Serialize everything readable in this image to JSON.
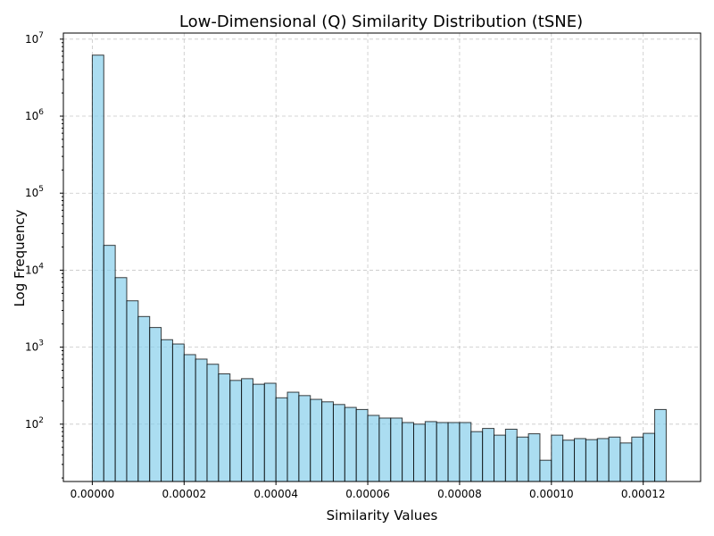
{
  "chart_data": {
    "type": "bar",
    "title": "Low-Dimensional (Q) Similarity Distribution (tSNE)",
    "xlabel": "Similarity Values",
    "ylabel": "Log Frequency",
    "yscale": "log",
    "grid": true,
    "colors": {
      "bar_fill": "#87CEEB",
      "bar_edge": "#000000"
    },
    "bin_width": 2.5e-06,
    "bin_start": 0.0,
    "values": [
      6200000,
      21000,
      8000,
      4000,
      2500,
      1800,
      1250,
      1100,
      800,
      700,
      600,
      450,
      370,
      390,
      330,
      340,
      220,
      260,
      235,
      210,
      195,
      180,
      165,
      155,
      130,
      120,
      120,
      105,
      100,
      108,
      105,
      105,
      105,
      80,
      88,
      72,
      86,
      68,
      75,
      34,
      72,
      62,
      65,
      63,
      65,
      68,
      57,
      68,
      76,
      155
    ],
    "xlim": [
      -6.3e-06,
      0.0001325
    ],
    "ylim": [
      18,
      12000000
    ],
    "x_ticks": [
      {
        "value": 0.0,
        "label": "0.00000"
      },
      {
        "value": 2e-05,
        "label": "0.00002"
      },
      {
        "value": 4e-05,
        "label": "0.00004"
      },
      {
        "value": 6e-05,
        "label": "0.00006"
      },
      {
        "value": 8e-05,
        "label": "0.00008"
      },
      {
        "value": 0.0001,
        "label": "0.00010"
      },
      {
        "value": 0.00012,
        "label": "0.00012"
      }
    ],
    "y_ticks": [
      {
        "value": 100,
        "base": "10",
        "exp": "2"
      },
      {
        "value": 1000,
        "base": "10",
        "exp": "3"
      },
      {
        "value": 10000,
        "base": "10",
        "exp": "4"
      },
      {
        "value": 100000,
        "base": "10",
        "exp": "5"
      },
      {
        "value": 1000000,
        "base": "10",
        "exp": "6"
      },
      {
        "value": 10000000,
        "base": "10",
        "exp": "7"
      }
    ]
  }
}
